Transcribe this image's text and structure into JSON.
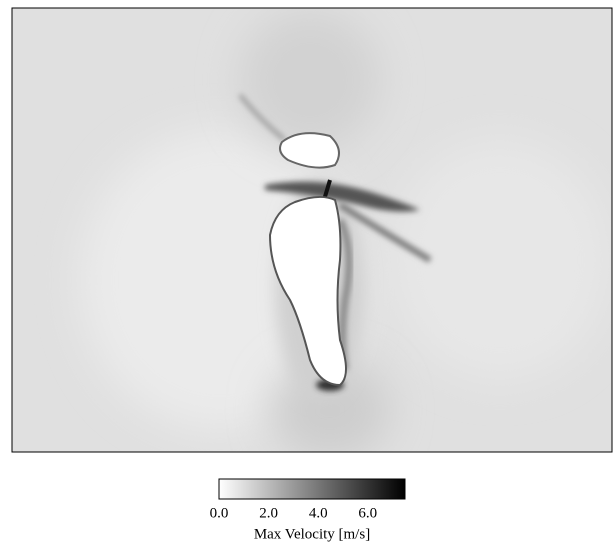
{
  "chart_data": {
    "type": "contour",
    "colorbar": {
      "label": "Max Velocity [m/s]",
      "clim": [
        0,
        7.5
      ],
      "ticks": [
        {
          "value": 0,
          "label": "0.0"
        },
        {
          "value": 2,
          "label": "2.0"
        },
        {
          "value": 4,
          "label": "4.0"
        },
        {
          "value": 6,
          "label": "6.0"
        }
      ],
      "colors": [
        "#ffffff",
        "#000000"
      ]
    }
  }
}
